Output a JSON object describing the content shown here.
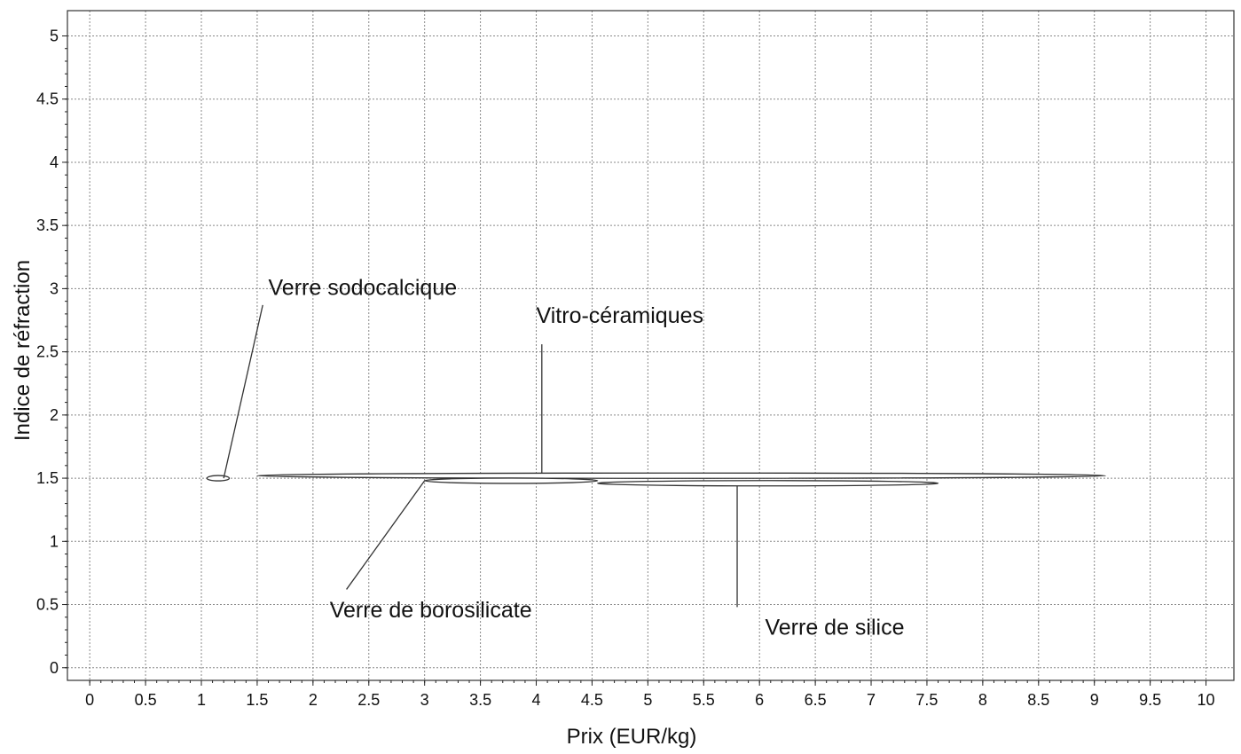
{
  "chart_data": {
    "type": "scatter",
    "title": "",
    "xlabel": "Prix (EUR/kg)",
    "ylabel": "Indice de réfraction",
    "xlim": [
      -0.2,
      10.25
    ],
    "ylim": [
      -0.1,
      5.2
    ],
    "x_ticks": [
      "0",
      "0.5",
      "1",
      "1.5",
      "2",
      "2.5",
      "3",
      "3.5",
      "4",
      "4.5",
      "5",
      "5.5",
      "6",
      "6.5",
      "7",
      "7.5",
      "8",
      "8.5",
      "9",
      "9.5",
      "10"
    ],
    "y_ticks": [
      "0",
      "0.5",
      "1",
      "1.5",
      "2",
      "2.5",
      "3",
      "3.5",
      "4",
      "4.5",
      "5"
    ],
    "grid": true,
    "series": [
      {
        "name": "Verre sodocalcique",
        "x_range": [
          1.05,
          1.25
        ],
        "y_range": [
          1.48,
          1.52
        ]
      },
      {
        "name": "Vitro-céramiques",
        "x_range": [
          1.5,
          9.1
        ],
        "y_range": [
          1.5,
          1.54
        ]
      },
      {
        "name": "Verre de borosilicate",
        "x_range": [
          3.0,
          4.55
        ],
        "y_range": [
          1.46,
          1.5
        ]
      },
      {
        "name": "Verre de silice",
        "x_range": [
          4.55,
          7.6
        ],
        "y_range": [
          1.44,
          1.48
        ]
      }
    ],
    "annotations": [
      {
        "text": "Verre sodocalcique",
        "target_series": 0,
        "anchor": [
          1.6,
          2.95
        ],
        "leader_from": [
          1.55,
          2.87
        ],
        "leader_to": [
          1.2,
          1.5
        ]
      },
      {
        "text": "Vitro-céramiques",
        "target_series": 1,
        "anchor": [
          4.0,
          2.73
        ],
        "leader_from": [
          4.05,
          2.56
        ],
        "leader_to": [
          4.05,
          1.54
        ]
      },
      {
        "text": "Verre de borosilicate",
        "target_series": 2,
        "anchor": [
          2.15,
          0.4
        ],
        "leader_from": [
          2.3,
          0.62
        ],
        "leader_to": [
          3.0,
          1.48
        ]
      },
      {
        "text": "Verre de silice",
        "target_series": 3,
        "anchor": [
          6.05,
          0.26
        ],
        "leader_from": [
          5.8,
          0.48
        ],
        "leader_to": [
          5.8,
          1.44
        ]
      }
    ]
  }
}
